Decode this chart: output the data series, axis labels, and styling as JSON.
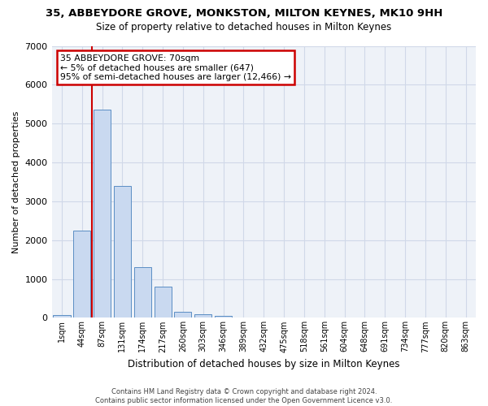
{
  "title": "35, ABBEYDORE GROVE, MONKSTON, MILTON KEYNES, MK10 9HH",
  "subtitle": "Size of property relative to detached houses in Milton Keynes",
  "xlabel": "Distribution of detached houses by size in Milton Keynes",
  "ylabel": "Number of detached properties",
  "footer_line1": "Contains HM Land Registry data © Crown copyright and database right 2024.",
  "footer_line2": "Contains public sector information licensed under the Open Government Licence v3.0.",
  "annotation_title": "35 ABBEYDORE GROVE: 70sqm",
  "annotation_line1": "← 5% of detached houses are smaller (647)",
  "annotation_line2": "95% of semi-detached houses are larger (12,466) →",
  "bar_color": "#c9d9f0",
  "bar_edge_color": "#5b8ec4",
  "grid_color": "#d0d8e8",
  "bg_color": "#eef2f8",
  "annotation_box_color": "#ffffff",
  "annotation_box_edge": "#cc0000",
  "vline_color": "#cc0000",
  "categories": [
    "1sqm",
    "44sqm",
    "87sqm",
    "131sqm",
    "174sqm",
    "217sqm",
    "260sqm",
    "303sqm",
    "346sqm",
    "389sqm",
    "432sqm",
    "475sqm",
    "518sqm",
    "561sqm",
    "604sqm",
    "648sqm",
    "691sqm",
    "734sqm",
    "777sqm",
    "820sqm",
    "863sqm"
  ],
  "values": [
    70,
    2250,
    5350,
    3400,
    1300,
    800,
    160,
    100,
    40,
    5,
    2,
    1,
    0,
    0,
    0,
    0,
    0,
    0,
    0,
    0,
    0
  ],
  "ylim": [
    0,
    7000
  ],
  "yticks": [
    0,
    1000,
    2000,
    3000,
    4000,
    5000,
    6000,
    7000
  ],
  "vline_x": 1.5,
  "figsize": [
    6.0,
    5.0
  ],
  "dpi": 100
}
